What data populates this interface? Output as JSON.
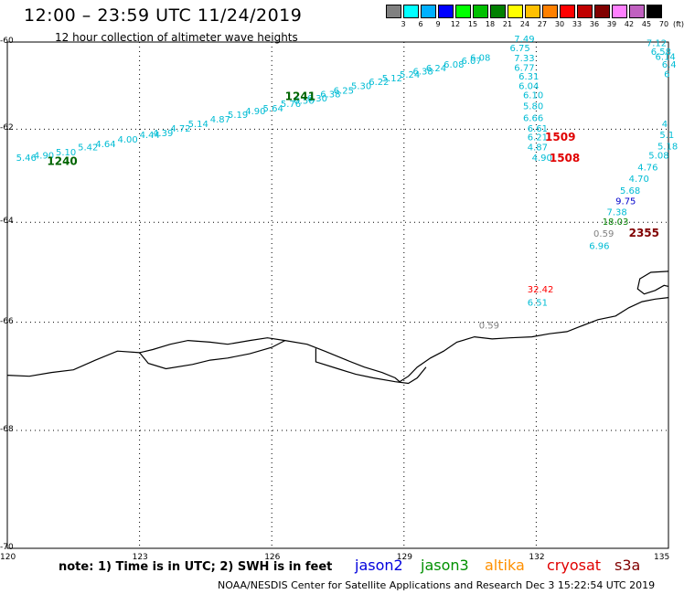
{
  "header": {
    "title": "12:00 – 23:59 UTC 11/24/2019",
    "subtitle": "12 hour collection of altimeter wave heights"
  },
  "color_scale": {
    "unit": "(ft)",
    "bins": [
      {
        "label": "3",
        "color": "#808080"
      },
      {
        "label": "6",
        "color": "#00ffff"
      },
      {
        "label": "9",
        "color": "#00b0ff"
      },
      {
        "label": "12",
        "color": "#0000ff"
      },
      {
        "label": "15",
        "color": "#00ff00"
      },
      {
        "label": "18",
        "color": "#00c000"
      },
      {
        "label": "21",
        "color": "#008000"
      },
      {
        "label": "24",
        "color": "#ffff00"
      },
      {
        "label": "27",
        "color": "#ffc000"
      },
      {
        "label": "30",
        "color": "#ff8000"
      },
      {
        "label": "33",
        "color": "#ff0000"
      },
      {
        "label": "36",
        "color": "#c00000"
      },
      {
        "label": "39",
        "color": "#800000"
      },
      {
        "label": "42",
        "color": "#ff80ff"
      },
      {
        "label": "45",
        "color": "#c060c0"
      },
      {
        "label": "70",
        "color": "#000000"
      }
    ]
  },
  "map": {
    "lon_range": [
      120,
      135
    ],
    "lat_range": [
      -70,
      -60
    ],
    "lon_ticks": [
      "120",
      "123",
      "126",
      "129",
      "132",
      "135"
    ],
    "lat_ticks": [
      "-60",
      "-62",
      "-64",
      "-66",
      "-68",
      "-70"
    ],
    "tracks": [
      {
        "color": "#00bcd4",
        "points": [
          {
            "lon": 120.2,
            "lat": -62.7,
            "v": "5.46"
          },
          {
            "lon": 120.6,
            "lat": -62.65,
            "v": "4.90"
          },
          {
            "lon": 121.1,
            "lat": -62.58,
            "v": "5.10"
          },
          {
            "lon": 121.6,
            "lat": -62.47,
            "v": "5.42"
          },
          {
            "lon": 122.0,
            "lat": -62.4,
            "v": "4.64"
          },
          {
            "lon": 122.5,
            "lat": -62.3,
            "v": "4.00"
          },
          {
            "lon": 123.0,
            "lat": -62.2,
            "v": "4.44"
          },
          {
            "lon": 123.3,
            "lat": -62.15,
            "v": "4.39"
          },
          {
            "lon": 123.7,
            "lat": -62.05,
            "v": "4.72"
          },
          {
            "lon": 124.1,
            "lat": -61.95,
            "v": "5.14"
          },
          {
            "lon": 124.6,
            "lat": -61.85,
            "v": "4.87"
          },
          {
            "lon": 125.0,
            "lat": -61.75,
            "v": "5.19"
          },
          {
            "lon": 125.4,
            "lat": -61.67,
            "v": "4.90"
          },
          {
            "lon": 125.8,
            "lat": -61.6,
            "v": "5.64"
          },
          {
            "lon": 126.2,
            "lat": -61.5,
            "v": "5.76"
          },
          {
            "lon": 126.5,
            "lat": -61.43,
            "v": "6.56"
          },
          {
            "lon": 126.8,
            "lat": -61.38,
            "v": "6.30"
          },
          {
            "lon": 127.1,
            "lat": -61.28,
            "v": "6.38"
          },
          {
            "lon": 127.4,
            "lat": -61.2,
            "v": "6.25"
          },
          {
            "lon": 127.8,
            "lat": -61.1,
            "v": "5.30"
          },
          {
            "lon": 128.2,
            "lat": -61.0,
            "v": "6.22"
          },
          {
            "lon": 128.5,
            "lat": -60.92,
            "v": "5.12"
          },
          {
            "lon": 128.9,
            "lat": -60.83,
            "v": "5.24"
          },
          {
            "lon": 129.2,
            "lat": -60.76,
            "v": "6.38"
          },
          {
            "lon": 129.5,
            "lat": -60.69,
            "v": "6.24"
          },
          {
            "lon": 129.9,
            "lat": -60.6,
            "v": "6.08"
          },
          {
            "lon": 130.3,
            "lat": -60.52,
            "v": "6.07"
          },
          {
            "lon": 130.5,
            "lat": -60.44,
            "v": "6.08"
          }
        ]
      },
      {
        "color": "#00bcd4",
        "points": [
          {
            "lon": 131.5,
            "lat": -60.0,
            "v": "7.49"
          },
          {
            "lon": 131.4,
            "lat": -60.22,
            "v": "6.75"
          },
          {
            "lon": 131.5,
            "lat": -60.45,
            "v": "7.33"
          },
          {
            "lon": 131.5,
            "lat": -60.67,
            "v": "6.77"
          },
          {
            "lon": 131.6,
            "lat": -60.88,
            "v": "6.31"
          },
          {
            "lon": 131.6,
            "lat": -61.1,
            "v": "6.04"
          },
          {
            "lon": 131.7,
            "lat": -61.3,
            "v": "6.10"
          },
          {
            "lon": 131.7,
            "lat": -61.55,
            "v": "5.80"
          },
          {
            "lon": 131.7,
            "lat": -61.82,
            "v": "6.66"
          },
          {
            "lon": 131.8,
            "lat": -62.05,
            "v": "6.61"
          },
          {
            "lon": 131.8,
            "lat": -62.25,
            "v": "6.21"
          },
          {
            "lon": 131.8,
            "lat": -62.47,
            "v": "4.87"
          },
          {
            "lon": 131.9,
            "lat": -62.7,
            "v": "4.90"
          }
        ]
      },
      {
        "color": "#00bcd4",
        "points": [
          {
            "lon": 134.5,
            "lat": -60.1,
            "v": "7.12"
          },
          {
            "lon": 134.6,
            "lat": -60.3,
            "v": "6.58"
          },
          {
            "lon": 134.7,
            "lat": -60.42,
            "v": "6.14"
          },
          {
            "lon": 134.85,
            "lat": -60.6,
            "v": "6.4"
          },
          {
            "lon": 134.9,
            "lat": -60.82,
            "v": "6"
          },
          {
            "lon": 134.85,
            "lat": -61.95,
            "v": "4"
          },
          {
            "lon": 134.8,
            "lat": -62.2,
            "v": "5.1"
          },
          {
            "lon": 134.75,
            "lat": -62.45,
            "v": "5.18"
          },
          {
            "lon": 134.55,
            "lat": -62.65,
            "v": "5.08"
          },
          {
            "lon": 134.3,
            "lat": -62.9,
            "v": "4.76"
          },
          {
            "lon": 134.1,
            "lat": -63.15,
            "v": "4.70"
          },
          {
            "lon": 133.9,
            "lat": -63.4,
            "v": "5.68"
          },
          {
            "lon": 133.6,
            "lat": -63.85,
            "v": "7.38"
          },
          {
            "lon": 133.2,
            "lat": -64.55,
            "v": "6.96"
          }
        ]
      }
    ],
    "points": [
      {
        "lon": 133.8,
        "lat": -63.62,
        "v": "9.75",
        "color": "#0000cc"
      },
      {
        "lon": 133.5,
        "lat": -64.05,
        "v": "18.03",
        "color": "#008000"
      },
      {
        "lon": 133.3,
        "lat": -64.3,
        "v": "0.59",
        "color": "#808080"
      },
      {
        "lon": 131.8,
        "lat": -65.42,
        "v": "32.42",
        "color": "#ff0000"
      },
      {
        "lon": 131.8,
        "lat": -65.68,
        "v": "6.51",
        "color": "#00bcd4"
      },
      {
        "lon": 130.7,
        "lat": -66.12,
        "v": "0.59",
        "color": "#808080"
      }
    ],
    "time_labels": [
      {
        "lon": 120.9,
        "lat": -62.78,
        "t": "1240",
        "color": "#006400"
      },
      {
        "lon": 126.3,
        "lat": -61.35,
        "t": "1241",
        "color": "#006400"
      },
      {
        "lon": 132.2,
        "lat": -62.26,
        "t": "1509",
        "color": "#e00000"
      },
      {
        "lon": 132.3,
        "lat": -62.72,
        "t": "1508",
        "color": "#e00000"
      },
      {
        "lon": 134.1,
        "lat": -64.3,
        "t": "2355",
        "color": "#800000"
      }
    ],
    "coastline": [
      [
        120.0,
        -67.0
      ],
      [
        120.5,
        -67.02
      ],
      [
        121.0,
        -66.95
      ],
      [
        121.5,
        -66.9
      ],
      [
        122.0,
        -66.72
      ],
      [
        122.5,
        -66.55
      ],
      [
        123.0,
        -66.58
      ],
      [
        123.3,
        -66.52
      ],
      [
        123.7,
        -66.42
      ],
      [
        124.1,
        -66.35
      ],
      [
        124.6,
        -66.38
      ],
      [
        125.0,
        -66.42
      ],
      [
        125.5,
        -66.35
      ],
      [
        125.9,
        -66.3
      ],
      [
        126.3,
        -66.35
      ],
      [
        126.8,
        -66.42
      ],
      [
        127.2,
        -66.55
      ],
      [
        127.7,
        -66.72
      ],
      [
        128.1,
        -66.85
      ],
      [
        128.5,
        -66.95
      ],
      [
        128.8,
        -67.05
      ],
      [
        128.9,
        -67.12
      ],
      [
        129.1,
        -67.02
      ],
      [
        129.3,
        -66.85
      ],
      [
        129.6,
        -66.68
      ],
      [
        129.9,
        -66.55
      ],
      [
        130.2,
        -66.38
      ],
      [
        130.6,
        -66.28
      ],
      [
        131.0,
        -66.32
      ],
      [
        131.4,
        -66.3
      ],
      [
        131.9,
        -66.28
      ],
      [
        132.3,
        -66.22
      ],
      [
        132.7,
        -66.18
      ],
      [
        133.0,
        -66.08
      ],
      [
        133.4,
        -65.95
      ],
      [
        133.8,
        -65.88
      ],
      [
        134.1,
        -65.72
      ],
      [
        134.4,
        -65.6
      ],
      [
        134.7,
        -65.55
      ],
      [
        135.0,
        -65.52
      ]
    ],
    "coast_inner": [
      [
        123.0,
        -66.58
      ],
      [
        123.2,
        -66.78
      ],
      [
        123.6,
        -66.88
      ],
      [
        124.2,
        -66.8
      ],
      [
        124.6,
        -66.72
      ],
      [
        125.0,
        -66.68
      ],
      [
        125.5,
        -66.6
      ],
      [
        126.0,
        -66.48
      ],
      [
        126.3,
        -66.35
      ]
    ],
    "coast_inner2": [
      [
        127.0,
        -66.5
      ],
      [
        127.0,
        -66.75
      ],
      [
        127.5,
        -66.88
      ],
      [
        127.9,
        -66.98
      ],
      [
        128.3,
        -67.05
      ],
      [
        128.8,
        -67.12
      ],
      [
        129.1,
        -67.15
      ],
      [
        129.3,
        -67.05
      ],
      [
        129.5,
        -66.85
      ]
    ],
    "coast_east": [
      [
        135.0,
        -65.0
      ],
      [
        134.6,
        -65.02
      ],
      [
        134.35,
        -65.15
      ],
      [
        134.3,
        -65.35
      ],
      [
        134.45,
        -65.45
      ],
      [
        134.7,
        -65.38
      ],
      [
        134.9,
        -65.28
      ],
      [
        135.0,
        -65.3
      ]
    ]
  },
  "footer": {
    "note": "note: 1) Time is in UTC; 2) SWH is in feet",
    "satellites": [
      {
        "name": "jason2",
        "color": "#0000dd"
      },
      {
        "name": "jason3",
        "color": "#009000"
      },
      {
        "name": "altika",
        "color": "#ff9000"
      },
      {
        "name": "cryosat",
        "color": "#e00000"
      },
      {
        "name": "s3a",
        "color": "#800000"
      }
    ],
    "credit": "NOAA/NESDIS Center for Satellite Applications and Research    Dec  3 15:22:54 UTC 2019"
  }
}
